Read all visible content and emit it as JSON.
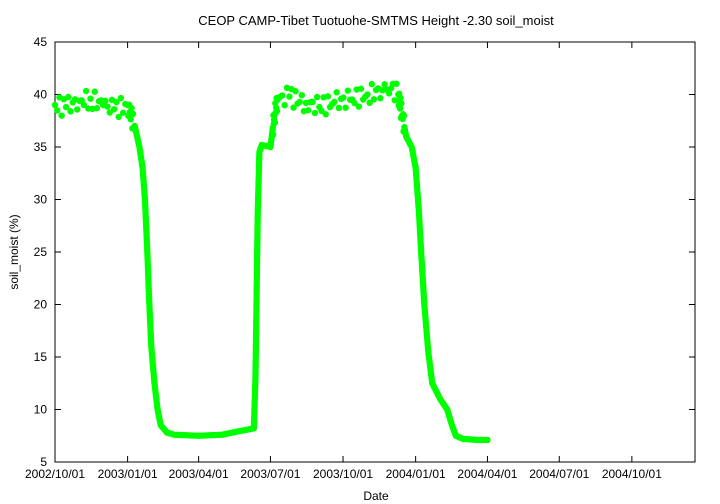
{
  "chart_data": {
    "type": "scatter",
    "title": "CEOP CAMP-Tibet Tuotuohe-SMTMS Height -2.30 soil_moist",
    "xlabel": "Date",
    "ylabel": "soil_moist (%)",
    "xlim": [
      "2002/10/01",
      "2004/12/20"
    ],
    "ylim": [
      5,
      45
    ],
    "x_ticks": [
      "2002/10/01",
      "2003/01/01",
      "2003/04/01",
      "2003/07/01",
      "2003/10/01",
      "2004/01/01",
      "2004/04/01",
      "2004/07/01",
      "2004/10/01"
    ],
    "y_ticks": [
      5,
      10,
      15,
      20,
      25,
      30,
      35,
      40,
      45
    ],
    "grid": false,
    "legend": "none",
    "series": [
      {
        "color": "#00ff00",
        "marker": "circle",
        "points": [
          [
            "2002/10/01",
            39.0
          ],
          [
            "2002/10/15",
            38.8
          ],
          [
            "2002/11/01",
            39.4
          ],
          [
            "2002/11/15",
            39.6
          ],
          [
            "2002/12/01",
            39.0
          ],
          [
            "2002/12/15",
            38.6
          ],
          [
            "2003/01/01",
            39.0
          ],
          [
            "2003/01/10",
            37.0
          ],
          [
            "2003/01/16",
            35.0
          ],
          [
            "2003/01/20",
            33.0
          ],
          [
            "2003/01/23",
            30.0
          ],
          [
            "2003/01/26",
            25.0
          ],
          [
            "2003/01/28",
            21.0
          ],
          [
            "2003/01/31",
            16.0
          ],
          [
            "2003/02/04",
            12.5
          ],
          [
            "2003/02/08",
            10.0
          ],
          [
            "2003/02/12",
            8.5
          ],
          [
            "2003/02/20",
            7.8
          ],
          [
            "2003/03/01",
            7.6
          ],
          [
            "2003/04/01",
            7.5
          ],
          [
            "2003/05/01",
            7.6
          ],
          [
            "2003/05/20",
            7.9
          ],
          [
            "2003/06/10",
            8.2
          ],
          [
            "2003/06/12",
            13.0
          ],
          [
            "2003/06/13",
            18.0
          ],
          [
            "2003/06/14",
            24.0
          ],
          [
            "2003/06/15",
            29.0
          ],
          [
            "2003/06/17",
            34.5
          ],
          [
            "2003/06/20",
            35.2
          ],
          [
            "2003/07/01",
            35.0
          ],
          [
            "2003/07/06",
            38.0
          ],
          [
            "2003/07/10",
            39.5
          ],
          [
            "2003/07/25",
            39.8
          ],
          [
            "2003/08/15",
            39.2
          ],
          [
            "2003/09/01",
            38.8
          ],
          [
            "2003/09/20",
            39.3
          ],
          [
            "2003/10/10",
            39.5
          ],
          [
            "2003/11/01",
            40.0
          ],
          [
            "2003/11/20",
            40.4
          ],
          [
            "2003/12/01",
            40.6
          ],
          [
            "2003/12/10",
            40.0
          ],
          [
            "2003/12/15",
            38.0
          ],
          [
            "2003/12/20",
            36.0
          ],
          [
            "2003/12/27",
            35.0
          ],
          [
            "2004/01/01",
            33.0
          ],
          [
            "2004/01/05",
            29.0
          ],
          [
            "2004/01/08",
            25.0
          ],
          [
            "2004/01/12",
            20.0
          ],
          [
            "2004/01/17",
            15.5
          ],
          [
            "2004/01/22",
            12.5
          ],
          [
            "2004/02/01",
            11.0
          ],
          [
            "2004/02/10",
            10.0
          ],
          [
            "2004/02/16",
            8.5
          ],
          [
            "2004/02/21",
            7.5
          ],
          [
            "2004/03/01",
            7.2
          ],
          [
            "2004/03/20",
            7.1
          ],
          [
            "2004/04/01",
            7.1
          ]
        ]
      }
    ]
  }
}
